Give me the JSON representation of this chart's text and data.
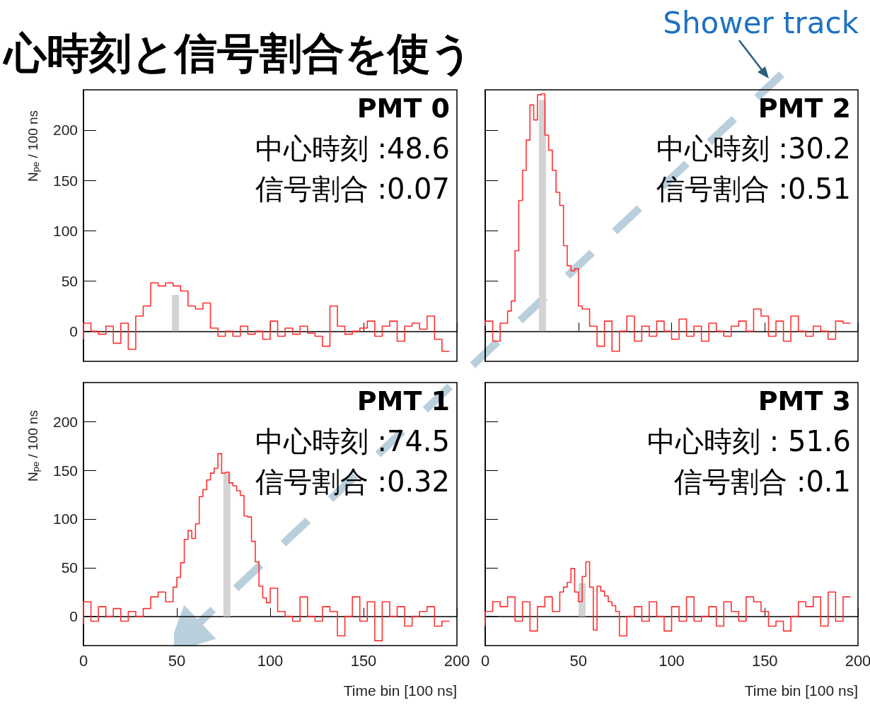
{
  "chart_data": [
    {
      "type": "step",
      "title": "心時刻と信号割合を使う",
      "ylabel": "N$_{pe}$ / 100 ns",
      "annotations": [
        "PMT 0",
        "中心時刻 :48.6",
        "信号割合 :0.07"
      ],
      "xlim": [
        0,
        200
      ],
      "xticks": [
        0,
        50,
        100,
        150,
        200
      ],
      "ylim": [
        -30,
        240
      ],
      "yticks": [
        0,
        50,
        100,
        150,
        200
      ],
      "tick_labels": "y",
      "series": [
        {
          "type": "bar",
          "x": [
            49.3
          ],
          "values": [
            36
          ],
          "color": "#d3d3d3"
        },
        {
          "color": "#ff3030",
          "x": [
            0,
            4,
            8,
            12,
            16,
            20,
            24,
            28,
            32,
            36,
            40,
            44,
            48,
            52,
            56,
            60,
            64,
            68,
            72,
            76,
            80,
            84,
            88,
            92,
            96,
            100,
            104,
            108,
            112,
            116,
            120,
            124,
            128,
            132,
            136,
            140,
            144,
            148,
            152,
            156,
            160,
            164,
            168,
            172,
            176,
            180,
            184,
            188,
            192,
            196
          ],
          "values": [
            -8,
            8,
            0,
            -3,
            5,
            -12,
            8,
            -18,
            15,
            25,
            48,
            45,
            48,
            45,
            40,
            25,
            22,
            28,
            3,
            -5,
            0,
            -5,
            5,
            -3,
            0,
            -8,
            10,
            -5,
            3,
            -3,
            5,
            -2,
            -5,
            -15,
            25,
            5,
            -3,
            0,
            3,
            10,
            -5,
            5,
            10,
            -10,
            5,
            8,
            2,
            15,
            -8,
            -20
          ]
        }
      ]
    },
    {
      "type": "step",
      "annotations": [
        "PMT 2",
        "中心時刻 :30.2",
        "信号割合 :0.51",
        "Shower track"
      ],
      "xlim": [
        0,
        200
      ],
      "xticks": [
        0,
        50,
        100,
        150,
        200
      ],
      "ylim": [
        -30,
        240
      ],
      "yticks": [
        0,
        50,
        100,
        150,
        200
      ],
      "tick_labels": false,
      "series": [
        {
          "type": "bar",
          "x": [
            30.7
          ],
          "values": [
            230
          ],
          "color": "#d3d3d3"
        },
        {
          "color": "#ff3030",
          "x": [
            0,
            4,
            8,
            12,
            14,
            16,
            18,
            20,
            22,
            24,
            26,
            28,
            30,
            32,
            34,
            36,
            38,
            40,
            42,
            44,
            46,
            48,
            50,
            52,
            56,
            60,
            64,
            68,
            72,
            76,
            80,
            84,
            88,
            92,
            96,
            100,
            104,
            108,
            112,
            116,
            120,
            124,
            128,
            132,
            136,
            140,
            144,
            148,
            152,
            156,
            160,
            164,
            168,
            172,
            176,
            180,
            184,
            188,
            192,
            196
          ],
          "values": [
            5,
            10,
            -10,
            8,
            20,
            30,
            80,
            130,
            160,
            190,
            225,
            210,
            235,
            236,
            195,
            180,
            160,
            138,
            125,
            85,
            65,
            60,
            62,
            25,
            22,
            5,
            -15,
            10,
            -20,
            0,
            15,
            -10,
            5,
            -5,
            10,
            0,
            -8,
            12,
            -5,
            5,
            -10,
            8,
            0,
            -5,
            5,
            10,
            0,
            22,
            15,
            -5,
            10,
            -10,
            15,
            0,
            -5,
            5,
            0,
            -8,
            10,
            8
          ]
        }
      ]
    },
    {
      "type": "step",
      "xlabel": "Time bin [100 ns]",
      "ylabel": "N$_{pe}$ / 100 ns",
      "annotations": [
        "PMT 1",
        "中心時刻 :74.5",
        "信号割合 :0.32"
      ],
      "xlim": [
        0,
        200
      ],
      "xticks": [
        0,
        50,
        100,
        150,
        200
      ],
      "ylim": [
        -30,
        240
      ],
      "yticks": [
        0,
        50,
        100,
        150,
        200
      ],
      "series": [
        {
          "type": "bar",
          "x": [
            76.8
          ],
          "values": [
            147
          ],
          "color": "#d3d3d3"
        },
        {
          "color": "#ff3030",
          "x": [
            0,
            4,
            8,
            12,
            16,
            20,
            24,
            28,
            32,
            36,
            40,
            44,
            48,
            50,
            52,
            54,
            56,
            58,
            60,
            62,
            64,
            66,
            68,
            70,
            72,
            74,
            76,
            78,
            80,
            82,
            84,
            86,
            88,
            90,
            92,
            94,
            96,
            98,
            100,
            104,
            108,
            112,
            116,
            120,
            124,
            128,
            132,
            136,
            140,
            144,
            148,
            152,
            156,
            160,
            164,
            168,
            172,
            176,
            180,
            184,
            188,
            192,
            196
          ],
          "values": [
            -8,
            15,
            -5,
            10,
            0,
            8,
            -5,
            5,
            0,
            8,
            20,
            25,
            15,
            30,
            40,
            55,
            79,
            88,
            80,
            95,
            123,
            130,
            140,
            147,
            152,
            167,
            147,
            148,
            137,
            134,
            129,
            124,
            103,
            102,
            77,
            56,
            31,
            19,
            14,
            29,
            5,
            0,
            -5,
            20,
            0,
            -5,
            10,
            5,
            -20,
            0,
            20,
            -5,
            15,
            -25,
            15,
            0,
            10,
            -10,
            0,
            5,
            10,
            -10,
            -5
          ]
        }
      ]
    },
    {
      "type": "step",
      "xlabel": "Time bin [100 ns]",
      "annotations": [
        "PMT 3",
        "中心時刻 : 51.6",
        "信号割合 :0.1"
      ],
      "xlim": [
        0,
        200
      ],
      "xticks": [
        0,
        50,
        100,
        150,
        200
      ],
      "ylim": [
        -30,
        240
      ],
      "yticks": [
        0,
        50,
        100,
        150,
        200
      ],
      "tick_labels": "x",
      "series": [
        {
          "type": "bar",
          "x": [
            52
          ],
          "values": [
            34
          ],
          "color": "#d3d3d3"
        },
        {
          "color": "#ff3030",
          "x": [
            0,
            4,
            8,
            12,
            16,
            20,
            24,
            28,
            32,
            36,
            40,
            42,
            44,
            46,
            48,
            50,
            52,
            54,
            56,
            58,
            60,
            62,
            64,
            66,
            68,
            70,
            72,
            76,
            80,
            84,
            88,
            92,
            96,
            100,
            104,
            108,
            112,
            116,
            120,
            124,
            128,
            132,
            136,
            140,
            144,
            148,
            152,
            156,
            160,
            164,
            168,
            172,
            176,
            180,
            184,
            188,
            192,
            196
          ],
          "values": [
            -10,
            5,
            15,
            10,
            20,
            -5,
            15,
            -15,
            10,
            20,
            5,
            25,
            30,
            35,
            49,
            25,
            15,
            41,
            56,
            30,
            -14,
            31,
            26,
            21,
            15,
            11,
            5,
            -20,
            0,
            10,
            -5,
            15,
            0,
            -15,
            10,
            -5,
            20,
            -5,
            0,
            10,
            -10,
            15,
            5,
            -5,
            20,
            15,
            5,
            -10,
            -5,
            -15,
            0,
            15,
            10,
            20,
            -10,
            25,
            -5,
            20
          ]
        }
      ]
    }
  ]
}
